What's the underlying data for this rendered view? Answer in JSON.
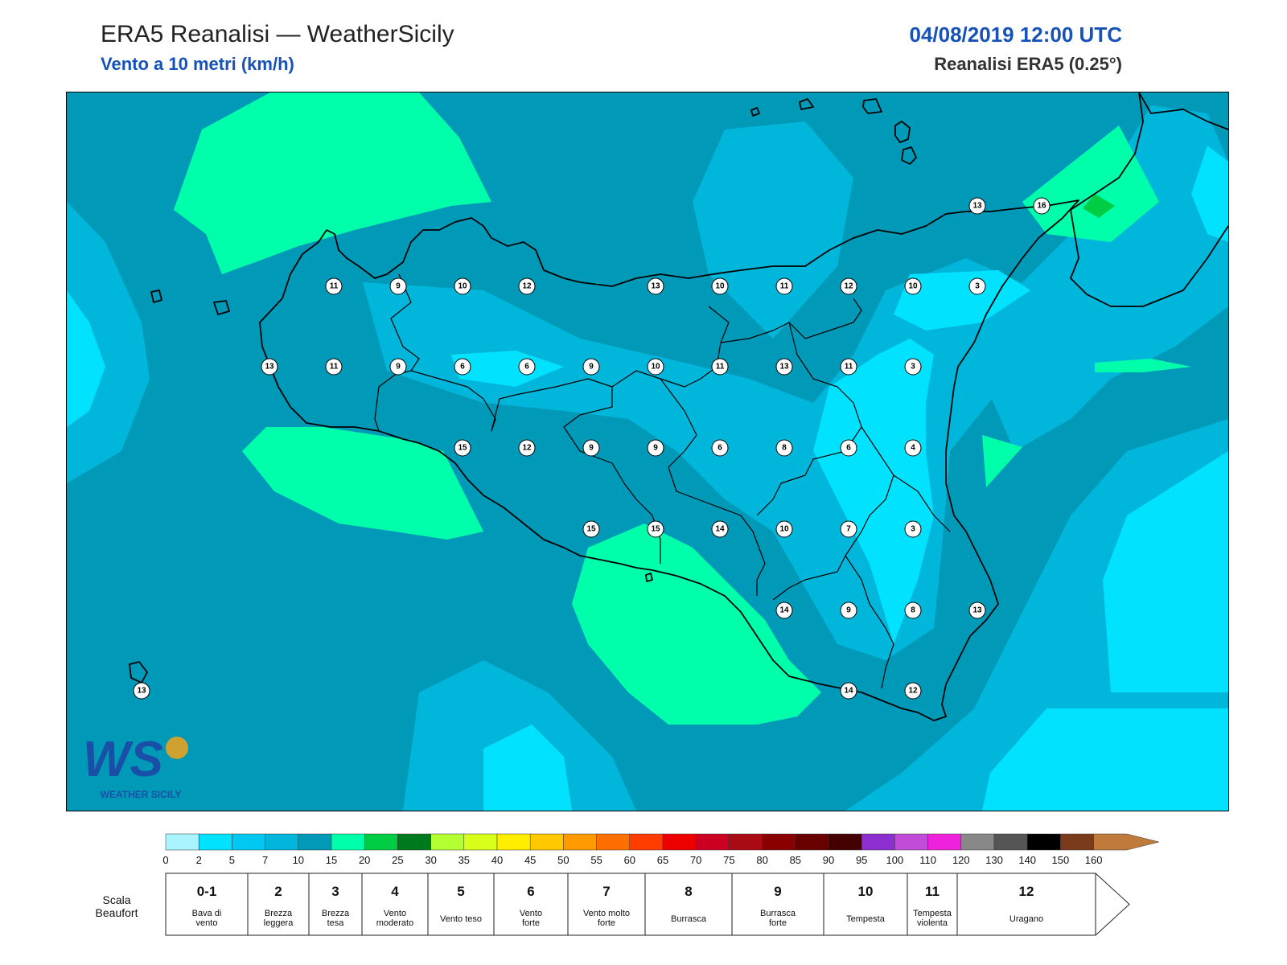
{
  "header": {
    "title": "ERA5 Reanalisi — WeatherSicily",
    "subtitle": "Vento a 10 metri (km/h)",
    "datetime": "04/08/2019 12:00 UTC",
    "source": "Reanalisi ERA5 (0.25°)"
  },
  "logo": {
    "text": "WEATHER SICILY",
    "letters": "WS"
  },
  "colors": {
    "field_5_10": "#00b6da",
    "field_10_15": "#0099b8",
    "field_15_20": "#00ffaa",
    "field_2_5": "#00e2ff"
  },
  "stations": [
    {
      "v": "11"
    },
    {
      "v": "9"
    },
    {
      "v": "10"
    },
    {
      "v": "12"
    },
    {
      "v": "13"
    },
    {
      "v": "10"
    },
    {
      "v": "11"
    },
    {
      "v": "12"
    },
    {
      "v": "10"
    },
    {
      "v": "3"
    },
    {
      "v": "13"
    },
    {
      "v": "11"
    },
    {
      "v": "9"
    },
    {
      "v": "6"
    },
    {
      "v": "6"
    },
    {
      "v": "9"
    },
    {
      "v": "10"
    },
    {
      "v": "11"
    },
    {
      "v": "13"
    },
    {
      "v": "11"
    },
    {
      "v": "3"
    },
    {
      "v": "15"
    },
    {
      "v": "12"
    },
    {
      "v": "9"
    },
    {
      "v": "9"
    },
    {
      "v": "6"
    },
    {
      "v": "8"
    },
    {
      "v": "6"
    },
    {
      "v": "4"
    },
    {
      "v": "15"
    },
    {
      "v": "15"
    },
    {
      "v": "14"
    },
    {
      "v": "10"
    },
    {
      "v": "7"
    },
    {
      "v": "3"
    },
    {
      "v": "14"
    },
    {
      "v": "9"
    },
    {
      "v": "8"
    },
    {
      "v": "13"
    },
    {
      "v": "14"
    },
    {
      "v": "12"
    },
    {
      "v": "13"
    },
    {
      "v": "16"
    },
    {
      "v": "13"
    }
  ],
  "colorbar": {
    "ticks": [
      "0",
      "2",
      "5",
      "7",
      "10",
      "15",
      "20",
      "25",
      "30",
      "35",
      "40",
      "45",
      "50",
      "55",
      "60",
      "65",
      "70",
      "75",
      "80",
      "85",
      "90",
      "95",
      "100",
      "110",
      "120",
      "130",
      "140",
      "150",
      "160"
    ],
    "colors": [
      "#aaf4ff",
      "#00e2ff",
      "#00c8f0",
      "#00b6da",
      "#0099b8",
      "#00ffaa",
      "#00cc44",
      "#007a1e",
      "#b4ff32",
      "#d8ff1a",
      "#ffee00",
      "#ffc800",
      "#ff9b00",
      "#ff6e00",
      "#ff3c00",
      "#ee0000",
      "#cc0022",
      "#aa0a14",
      "#8a0000",
      "#680000",
      "#440000",
      "#8c2ed0",
      "#c04cd8",
      "#ee22dd",
      "#888888",
      "#555555",
      "#000000",
      "#7a3b1c",
      "#c07a3c"
    ]
  },
  "beaufort": {
    "title_line1": "Scala",
    "title_line2": "Beaufort",
    "items": [
      {
        "num": "0-1",
        "l1": "Bava di",
        "l2": "vento"
      },
      {
        "num": "2",
        "l1": "Brezza",
        "l2": "leggera"
      },
      {
        "num": "3",
        "l1": "Brezza",
        "l2": "tesa"
      },
      {
        "num": "4",
        "l1": "Vento",
        "l2": "moderato"
      },
      {
        "num": "5",
        "l1": "Vento teso",
        "l2": ""
      },
      {
        "num": "6",
        "l1": "Vento",
        "l2": "forte"
      },
      {
        "num": "7",
        "l1": "Vento molto",
        "l2": "forte"
      },
      {
        "num": "8",
        "l1": "Burrasca",
        "l2": ""
      },
      {
        "num": "9",
        "l1": "Burrasca",
        "l2": "forte"
      },
      {
        "num": "10",
        "l1": "Tempesta",
        "l2": ""
      },
      {
        "num": "11",
        "l1": "Tempesta",
        "l2": "violenta"
      },
      {
        "num": "12",
        "l1": "Uragano",
        "l2": ""
      }
    ]
  }
}
